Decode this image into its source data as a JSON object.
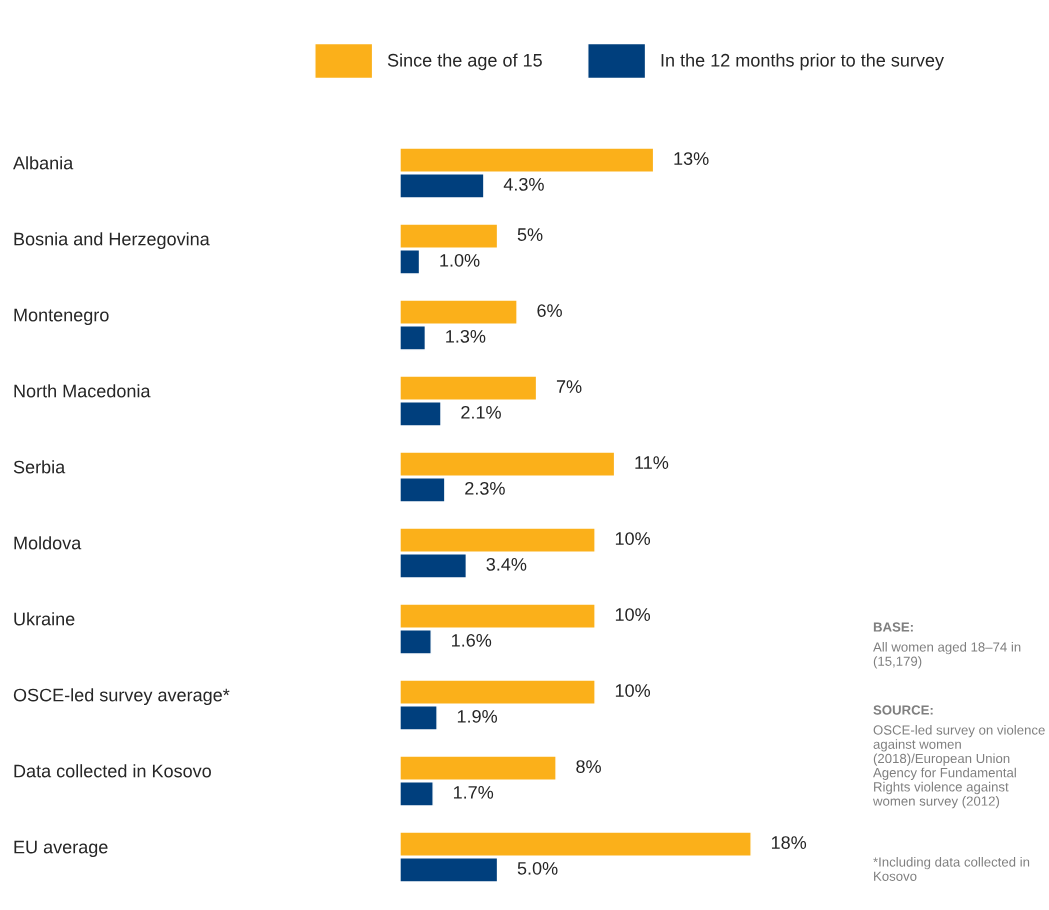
{
  "chart_data": {
    "type": "bar",
    "orientation": "horizontal",
    "legend": "top",
    "categories": [
      "Albania",
      "Bosnia and Herzegovina",
      "Montenegro",
      "North Macedonia",
      "Serbia",
      "Moldova",
      "Ukraine",
      "OSCE-led survey average*",
      "Data collected in Kosovo",
      "EU average"
    ],
    "series": [
      {
        "name": "Since the age of 15",
        "color": "#fbb01a",
        "values": [
          13,
          5,
          6,
          7,
          11,
          10,
          10,
          10,
          8,
          18
        ],
        "value_labels": [
          "13%",
          "5%",
          "6%",
          "7%",
          "11%",
          "10%",
          "10%",
          "10%",
          "8%",
          "18%"
        ]
      },
      {
        "name": "In the 12 months prior to the survey",
        "color": "#003f7d",
        "values": [
          4.3,
          1.0,
          1.3,
          2.1,
          2.3,
          3.4,
          1.6,
          1.9,
          1.7,
          5.0
        ],
        "value_labels": [
          "4.3%",
          "1.0%",
          "1.3%",
          "2.1%",
          "2.3%",
          "3.4%",
          "1.6%",
          "1.9%",
          "1.7%",
          "5.0%"
        ]
      }
    ],
    "annotations": [
      "BASE:",
      "All women aged 18–74 in (15,179)",
      "SOURCE:",
      "OSCE-led survey on violence against women (2018)/European Union Agency for Fundamental Rights violence against women survey (2012)",
      "*Including data collected in Kosovo"
    ],
    "grid": false
  }
}
